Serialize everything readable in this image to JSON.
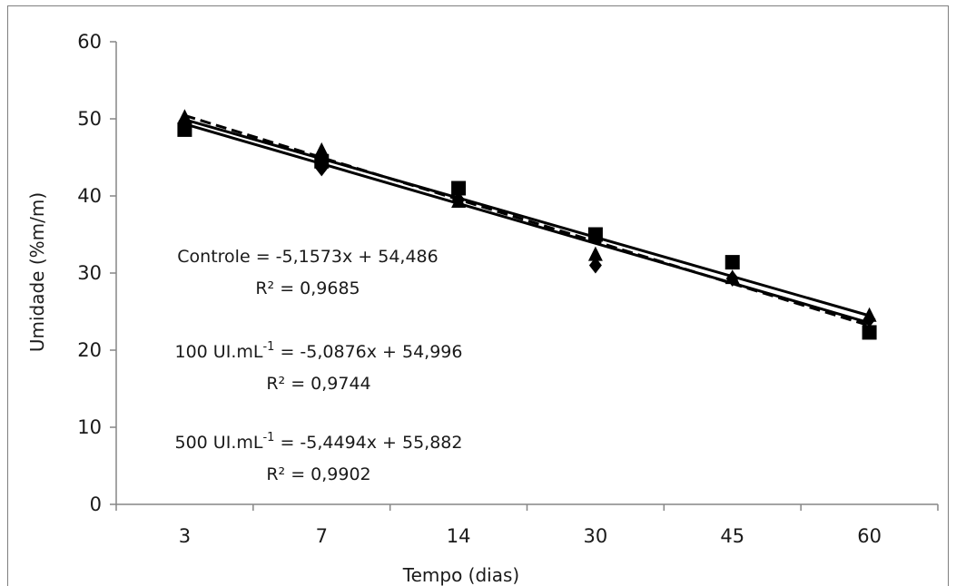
{
  "chart_data": {
    "type": "scatter",
    "title": "",
    "xlabel": "Tempo (dias)",
    "ylabel": "Umidade (%m/m)",
    "categories": [
      "3",
      "7",
      "14",
      "30",
      "45",
      "60"
    ],
    "ylim": [
      0,
      60
    ],
    "yticks": [
      "0",
      "10",
      "20",
      "30",
      "40",
      "50",
      "60"
    ],
    "grid": false,
    "legend": "none",
    "series": [
      {
        "marker": "square",
        "values": [
          48.6,
          44.5,
          41.0,
          35.0,
          31.4,
          22.3
        ],
        "trend": {
          "slope": -5.4494,
          "intercept": 55.882
        },
        "line_style": "dashed"
      },
      {
        "marker": "triangle",
        "values": [
          50.2,
          45.9,
          39.3,
          32.4,
          29.4,
          24.5
        ],
        "trend": {
          "slope": -5.0876,
          "intercept": 54.996
        },
        "line_style": "solid"
      },
      {
        "marker": "diamond",
        "values": [
          49.7,
          43.6,
          39.5,
          31.0,
          29.3,
          24.0
        ],
        "trend": {
          "slope": -5.1573,
          "intercept": 54.486
        },
        "line_style": "solid"
      }
    ],
    "annotations": [
      {
        "line1": "Controle = -5,1573x + 54,486",
        "line2": "R² = 0,9685"
      },
      {
        "line1_pre": "100 UI.mL",
        "line1_sup": "-1",
        "line1_post": " = -5,0876x + 54,996",
        "line2": "R² = 0,9744"
      },
      {
        "line1_pre": "500 UI.mL",
        "line1_sup": "-1",
        "line1_post": " = -5,4494x + 55,882",
        "line2": "R² = 0,9902"
      }
    ]
  }
}
